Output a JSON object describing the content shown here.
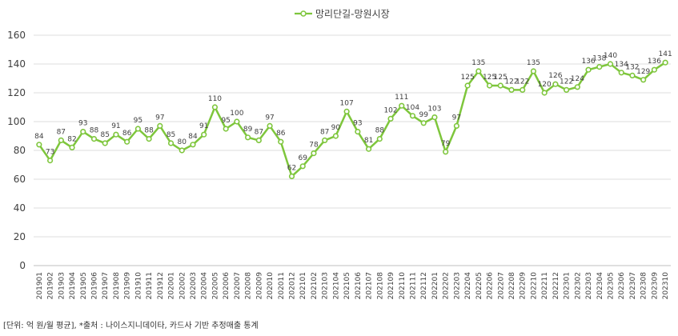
{
  "chart_data": {
    "type": "line",
    "legend": "망리단길-망원시장",
    "legend_position": "top-center",
    "grid": true,
    "ylim": [
      0,
      160
    ],
    "yticks": [
      0,
      20,
      40,
      60,
      80,
      100,
      120,
      140,
      160
    ],
    "categories": [
      "201901",
      "201902",
      "201903",
      "201904",
      "201905",
      "201906",
      "201907",
      "201908",
      "201909",
      "201910",
      "201911",
      "201912",
      "202001",
      "202002",
      "202003",
      "202004",
      "202005",
      "202006",
      "202007",
      "202008",
      "202009",
      "202010",
      "202011",
      "202012",
      "202101",
      "202102",
      "202103",
      "202104",
      "202105",
      "202106",
      "202107",
      "202108",
      "202109",
      "202110",
      "202111",
      "202112",
      "202201",
      "202202",
      "202203",
      "202204",
      "202205",
      "202206",
      "202207",
      "202208",
      "202209",
      "202210",
      "202211",
      "202212",
      "202301",
      "202302",
      "202303",
      "202304",
      "202305",
      "202306",
      "202307",
      "202308",
      "202309",
      "202310"
    ],
    "series": [
      {
        "name": "망리단길-망원시장",
        "color": "#7ec63c",
        "values": [
          84,
          73,
          87,
          82,
          93,
          88,
          85,
          91,
          86,
          95,
          88,
          97,
          85,
          80,
          84,
          91,
          110,
          95,
          100,
          89,
          87,
          97,
          86,
          62,
          69,
          78,
          87,
          90,
          107,
          93,
          81,
          88,
          102,
          111,
          104,
          99,
          103,
          79,
          97,
          125,
          135,
          125,
          125,
          122,
          122,
          135,
          120,
          126,
          122,
          124,
          136,
          138,
          140,
          134,
          132,
          129,
          136,
          141
        ]
      }
    ]
  },
  "footnote": "[단위: 억 원/월 평균], *출처 : 나이스지니데이타, 카드사 기반 추정매출 통계"
}
